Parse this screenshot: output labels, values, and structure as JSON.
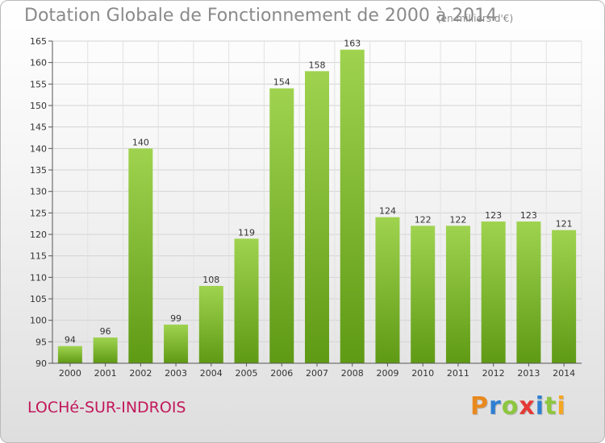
{
  "header": {
    "title": "Dotation Globale de Fonctionnement de 2000 à 2014",
    "unit": "(en milliers d'€)"
  },
  "footer": {
    "commune": "LOCHé-SUR-INDROIS",
    "logo": "Proxiti"
  },
  "colors": {
    "bar_top": "#9fd34f",
    "bar_bottom": "#5f9a15",
    "logo_letters": [
      "#e8891f",
      "#2f7fd1",
      "#8dc63f",
      "#e53935",
      "#2f7fd1",
      "#8dc63f",
      "#f5a623"
    ]
  },
  "chart_data": {
    "type": "bar",
    "title": "Dotation Globale de Fonctionnement de 2000 à 2014",
    "unit": "(en milliers d'€)",
    "categories": [
      "2000",
      "2001",
      "2002",
      "2003",
      "2004",
      "2005",
      "2006",
      "2007",
      "2008",
      "2009",
      "2010",
      "2011",
      "2012",
      "2013",
      "2014"
    ],
    "values": [
      94,
      96,
      140,
      99,
      108,
      119,
      154,
      158,
      163,
      124,
      122,
      122,
      123,
      123,
      121
    ],
    "ylim": [
      90,
      165
    ],
    "yticks": [
      90,
      95,
      100,
      105,
      110,
      115,
      120,
      125,
      130,
      135,
      140,
      145,
      150,
      155,
      160,
      165
    ],
    "grid": true,
    "legend": "none"
  }
}
